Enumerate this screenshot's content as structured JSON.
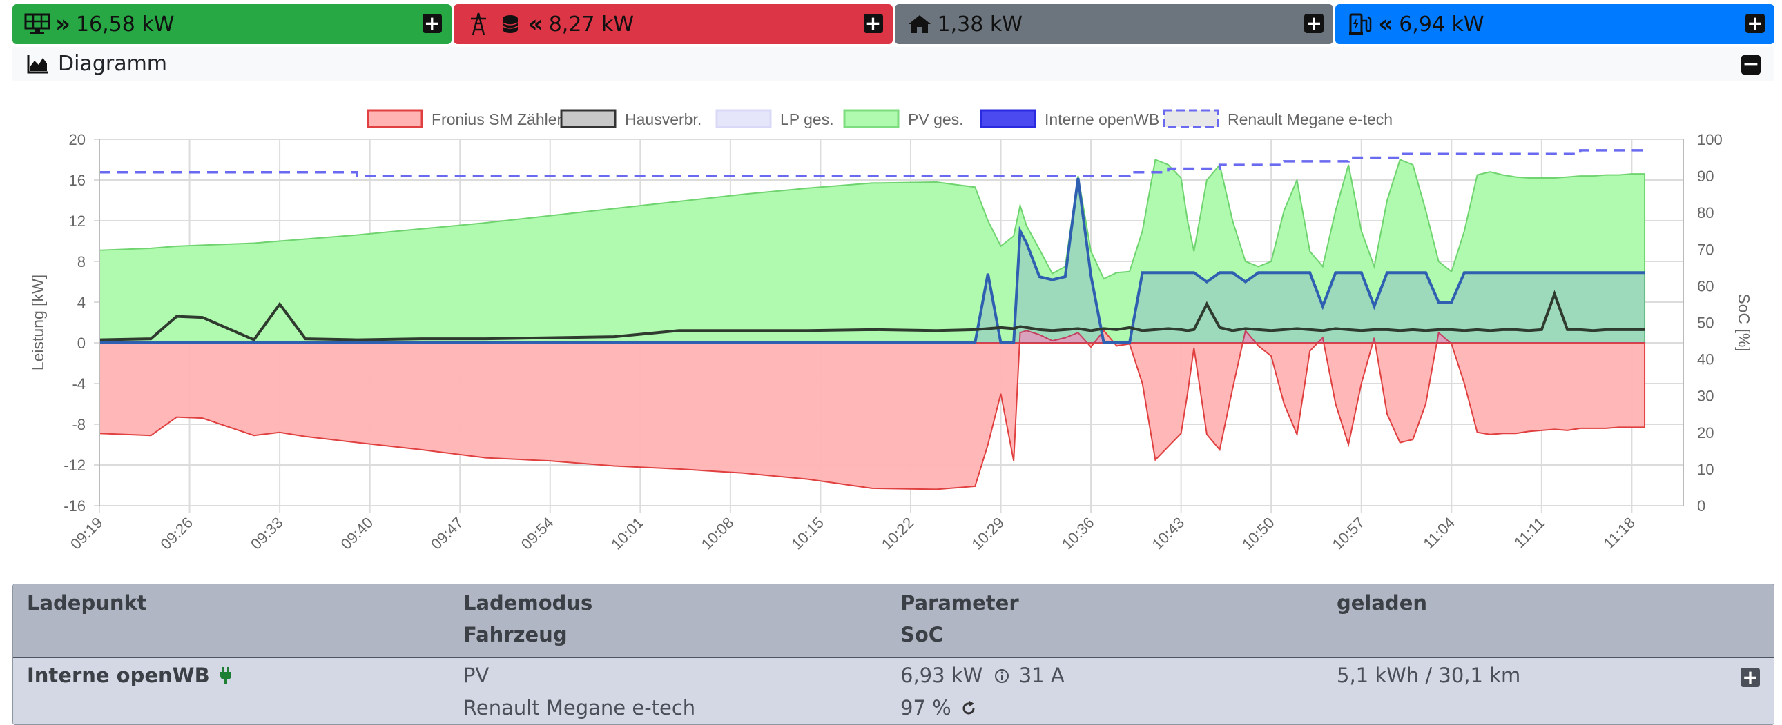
{
  "stats": [
    {
      "label": "16,58 kW",
      "icon": "solar-panel-icon",
      "arrow": "»",
      "color": "#28a745"
    },
    {
      "label": "8,27 kW",
      "icon": "grid-tower-icon",
      "arrow": "«",
      "color": "#dc3545"
    },
    {
      "label": "1,38 kW",
      "icon": "home-icon",
      "arrow": "",
      "color": "#6c757d"
    },
    {
      "label": "6,94 kW",
      "icon": "charging-station-icon",
      "arrow": "«",
      "color": "#007bff"
    }
  ],
  "diagram": {
    "title": "Diagramm"
  },
  "chart_data": {
    "type": "area",
    "legend": [
      {
        "name": "Fronius SM Zähler",
        "color": "#e04040",
        "fill": "#ffb3b3",
        "dash": false
      },
      {
        "name": "Hausverbr.",
        "color": "#333333",
        "fill": "#c8c8c8",
        "dash": false
      },
      {
        "name": "LP ges.",
        "color": "#d9d9f7",
        "fill": "#e6e6fa",
        "dash": false
      },
      {
        "name": "PV ges.",
        "color": "#7ddc7d",
        "fill": "#b0fab0",
        "dash": false
      },
      {
        "name": "Interne openWB",
        "color": "#2a2ae0",
        "fill": "#4a4af0",
        "dash": false
      },
      {
        "name": "Renault Megane e-tech",
        "color": "#6a6af0",
        "fill": "#e8e8e8",
        "dash": true
      }
    ],
    "legend_position": "top",
    "ylabel": "Leistung [kW]",
    "y2label": "SoC [%]",
    "ylim": [
      -16,
      20
    ],
    "y2lim": [
      0,
      100
    ],
    "yticks": [
      20,
      16,
      12,
      8,
      4,
      0,
      -4,
      -8,
      -12,
      -16
    ],
    "y2ticks": [
      100,
      90,
      80,
      70,
      60,
      50,
      40,
      30,
      20,
      10,
      0
    ],
    "xticks": [
      "09:19",
      "09:26",
      "09:33",
      "09:40",
      "09:47",
      "09:54",
      "10:01",
      "10:08",
      "10:15",
      "10:22",
      "10:29",
      "10:36",
      "10:43",
      "10:50",
      "10:57",
      "11:04",
      "11:11",
      "11:18"
    ],
    "grid": true,
    "x_minutes": [
      0,
      4,
      6,
      8,
      12,
      14,
      16,
      20,
      25,
      30,
      35,
      40,
      45,
      50,
      55,
      60,
      65,
      68,
      69,
      70,
      71,
      71.5,
      72,
      73,
      74,
      75,
      76,
      77,
      78,
      79,
      80,
      81,
      82,
      83,
      84,
      84.5,
      85,
      86,
      87,
      88,
      89,
      90,
      91,
      92,
      93,
      94,
      95,
      96,
      97,
      98,
      99,
      100,
      101,
      102,
      103,
      104,
      105,
      106,
      107,
      108,
      109,
      110,
      111,
      112,
      113,
      114,
      115,
      116,
      117,
      118,
      119,
      120
    ],
    "series": [
      {
        "name": "PV ges.",
        "values": [
          9.1,
          9.3,
          9.5,
          9.6,
          9.8,
          10.0,
          10.2,
          10.6,
          11.2,
          11.8,
          12.5,
          13.2,
          13.9,
          14.6,
          15.2,
          15.7,
          15.8,
          15.3,
          12.0,
          9.5,
          10.5,
          13.5,
          11.5,
          9.2,
          6.8,
          7.5,
          16.4,
          9.0,
          6.3,
          6.9,
          7.0,
          11.0,
          18.0,
          17.5,
          16.2,
          12.0,
          9.0,
          16.0,
          17.5,
          12.0,
          8.0,
          7.5,
          8.0,
          13.0,
          16.0,
          9.0,
          7.5,
          13.0,
          17.5,
          11.0,
          7.5,
          14.0,
          18.0,
          17.5,
          13.0,
          8.0,
          7.0,
          11.0,
          16.5,
          16.8,
          16.5,
          16.3,
          16.2,
          16.2,
          16.2,
          16.3,
          16.4,
          16.4,
          16.5,
          16.5,
          16.6,
          16.6
        ]
      },
      {
        "name": "Fronius SM Zähler",
        "values": [
          -8.9,
          -9.1,
          -7.3,
          -7.4,
          -9.1,
          -8.8,
          -9.2,
          -9.8,
          -10.5,
          -11.3,
          -11.6,
          -12.1,
          -12.4,
          -12.8,
          -13.4,
          -14.3,
          -14.4,
          -14.1,
          -10.0,
          -5.0,
          -11.6,
          1.0,
          1.2,
          0.8,
          0.2,
          0.5,
          1.0,
          -0.4,
          1.2,
          -0.3,
          -0.1,
          -4.0,
          -11.5,
          -10.2,
          -8.9,
          -5.0,
          -0.5,
          -9.0,
          -10.5,
          -4.5,
          1.2,
          -0.3,
          -1.3,
          -6.0,
          -9.0,
          -0.8,
          0.5,
          -6.0,
          -10.0,
          -4.0,
          0.5,
          -7.0,
          -9.8,
          -9.5,
          -6.0,
          1.0,
          -0.1,
          -4.0,
          -8.8,
          -9.0,
          -8.9,
          -8.9,
          -8.7,
          -8.6,
          -8.5,
          -8.6,
          -8.4,
          -8.4,
          -8.4,
          -8.3,
          -8.3,
          -8.3
        ]
      },
      {
        "name": "Hausverbr.",
        "values": [
          0.3,
          0.4,
          2.6,
          2.5,
          0.3,
          3.8,
          0.4,
          0.3,
          0.4,
          0.4,
          0.5,
          0.6,
          1.2,
          1.2,
          1.2,
          1.3,
          1.2,
          1.3,
          1.4,
          1.5,
          1.4,
          1.6,
          1.5,
          1.3,
          1.2,
          1.3,
          1.4,
          1.2,
          1.4,
          1.3,
          1.5,
          1.2,
          1.3,
          1.4,
          1.3,
          1.2,
          1.3,
          3.8,
          1.5,
          1.2,
          1.4,
          1.3,
          1.2,
          1.3,
          1.4,
          1.3,
          1.2,
          1.4,
          1.3,
          1.2,
          1.3,
          1.3,
          1.2,
          1.3,
          1.2,
          1.3,
          1.3,
          1.2,
          1.3,
          1.2,
          1.3,
          1.3,
          1.2,
          1.3,
          4.8,
          1.3,
          1.3,
          1.2,
          1.3,
          1.3,
          1.3,
          1.3
        ]
      },
      {
        "name": "Interne openWB",
        "values": [
          0,
          0,
          0,
          0,
          0,
          0,
          0,
          0,
          0,
          0,
          0,
          0,
          0,
          0,
          0,
          0,
          0,
          0,
          6.8,
          0,
          0,
          11.0,
          9.8,
          6.5,
          6.2,
          6.5,
          16.2,
          6.6,
          0,
          0,
          0,
          6.9,
          6.9,
          6.9,
          6.9,
          6.9,
          6.9,
          6.0,
          6.9,
          6.9,
          6.0,
          6.9,
          6.9,
          6.9,
          6.9,
          6.9,
          3.6,
          6.9,
          6.9,
          6.9,
          3.6,
          6.9,
          6.9,
          6.9,
          6.9,
          4.0,
          4.0,
          6.9,
          6.9,
          6.9,
          6.9,
          6.9,
          6.9,
          6.9,
          6.9,
          6.9,
          6.9,
          6.9,
          6.9,
          6.9,
          6.9,
          6.9
        ]
      },
      {
        "name": "Renault Megane e-tech",
        "axis": "y2",
        "values": [
          91,
          91,
          91,
          91,
          91,
          91,
          91,
          90,
          90,
          90,
          90,
          90,
          90,
          90,
          90,
          90,
          90,
          90,
          90,
          90,
          90,
          90,
          90,
          90,
          90,
          90,
          90,
          90,
          90,
          90,
          91,
          91,
          91,
          92,
          92,
          92,
          92,
          92,
          93,
          93,
          93,
          93,
          93,
          94,
          94,
          94,
          94,
          94,
          95,
          95,
          95,
          95,
          96,
          96,
          96,
          96,
          96,
          96,
          96,
          96,
          96,
          96,
          96,
          96,
          96,
          96,
          97,
          97,
          97,
          97,
          97,
          97
        ]
      }
    ]
  },
  "table": {
    "headers": {
      "ladepunkt": "Ladepunkt",
      "lademodus": "Lademodus",
      "fahrzeug": "Fahrzeug",
      "parameter": "Parameter",
      "soc": "SoC",
      "geladen": "geladen"
    },
    "row": {
      "name": "Interne openWB",
      "mode": "PV",
      "vehicle": "Renault Megane e-tech",
      "power": "6,93 kW",
      "current": "31 A",
      "soc": "97 %",
      "charged": "5,1 kWh / 30,1 km"
    }
  }
}
